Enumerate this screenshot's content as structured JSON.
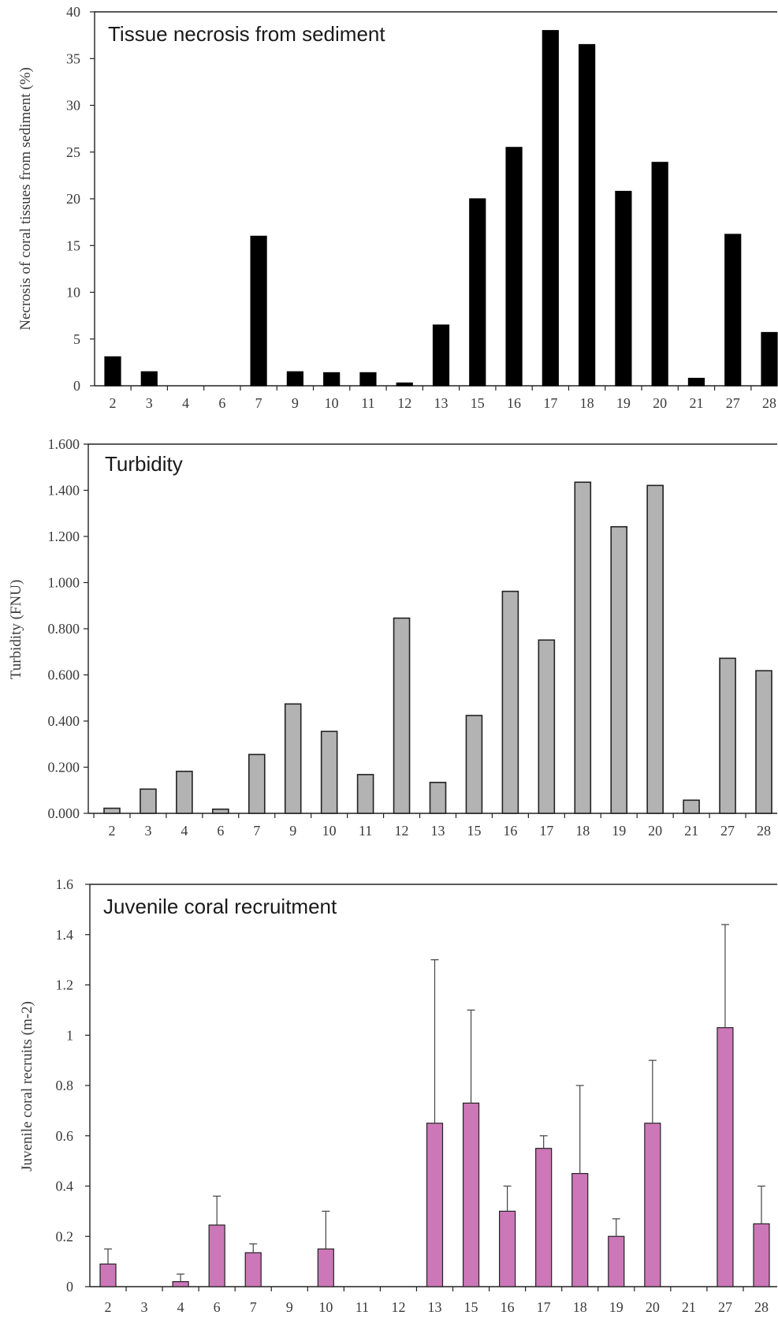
{
  "chart_data": [
    {
      "type": "bar",
      "title": "Tissue necrosis from sediment",
      "ylabel": "Necrosis of coral tissues from sediment (%)",
      "xlabel": "",
      "categories": [
        "2",
        "3",
        "4",
        "6",
        "7",
        "9",
        "10",
        "11",
        "12",
        "13",
        "15",
        "16",
        "17",
        "18",
        "19",
        "20",
        "21",
        "27",
        "28"
      ],
      "values": [
        3.1,
        1.5,
        0,
        0,
        16,
        1.5,
        1.4,
        1.4,
        0.3,
        6.5,
        20,
        25.5,
        38,
        36.5,
        20.8,
        23.9,
        0.8,
        16.2,
        5.7
      ],
      "ylim": [
        0,
        40
      ],
      "yticks": [
        "0",
        "5",
        "10",
        "15",
        "20",
        "25",
        "30",
        "35",
        "40"
      ],
      "color": "#000000",
      "grid": false
    },
    {
      "type": "bar",
      "title": "Turbidity",
      "ylabel": "Turbidity (FNU)",
      "xlabel": "",
      "categories": [
        "2",
        "3",
        "4",
        "6",
        "7",
        "9",
        "10",
        "11",
        "12",
        "13",
        "15",
        "16",
        "17",
        "18",
        "19",
        "20",
        "21",
        "27",
        "28"
      ],
      "values": [
        0.022,
        0.105,
        0.182,
        0.018,
        0.255,
        0.474,
        0.355,
        0.168,
        0.846,
        0.134,
        0.424,
        0.962,
        0.751,
        1.435,
        1.242,
        1.421,
        0.057,
        0.672,
        0.618
      ],
      "ylim": [
        0,
        1.6
      ],
      "yticks": [
        "0.000",
        "0.200",
        "0.400",
        "0.600",
        "0.800",
        "1.000",
        "1.200",
        "1.400",
        "1.600"
      ],
      "color": "#b3b3b3",
      "grid": false
    },
    {
      "type": "bar",
      "title": "Juvenile coral recruitment",
      "ylabel": "Juvenile coral recruits  (m-2)",
      "xlabel": "",
      "categories": [
        "2",
        "3",
        "4",
        "6",
        "7",
        "9",
        "10",
        "11",
        "12",
        "13",
        "15",
        "16",
        "17",
        "18",
        "19",
        "20",
        "21",
        "27",
        "28"
      ],
      "values": [
        0.09,
        0,
        0.02,
        0.245,
        0.135,
        0,
        0.15,
        0,
        0,
        0.65,
        0.73,
        0.3,
        0.55,
        0.45,
        0.2,
        0.65,
        0,
        1.03,
        0.25
      ],
      "error_upper": [
        0.15,
        null,
        0.05,
        0.36,
        0.17,
        null,
        0.3,
        null,
        null,
        1.3,
        1.1,
        0.4,
        0.6,
        0.8,
        0.27,
        0.9,
        null,
        1.44,
        0.4
      ],
      "ylim": [
        0,
        1.6
      ],
      "yticks": [
        "0",
        "0.2",
        "0.4",
        "0.6",
        "0.8",
        "1",
        "1.2",
        "1.4",
        "1.6"
      ],
      "color": "#cc77b8",
      "grid": false
    }
  ]
}
